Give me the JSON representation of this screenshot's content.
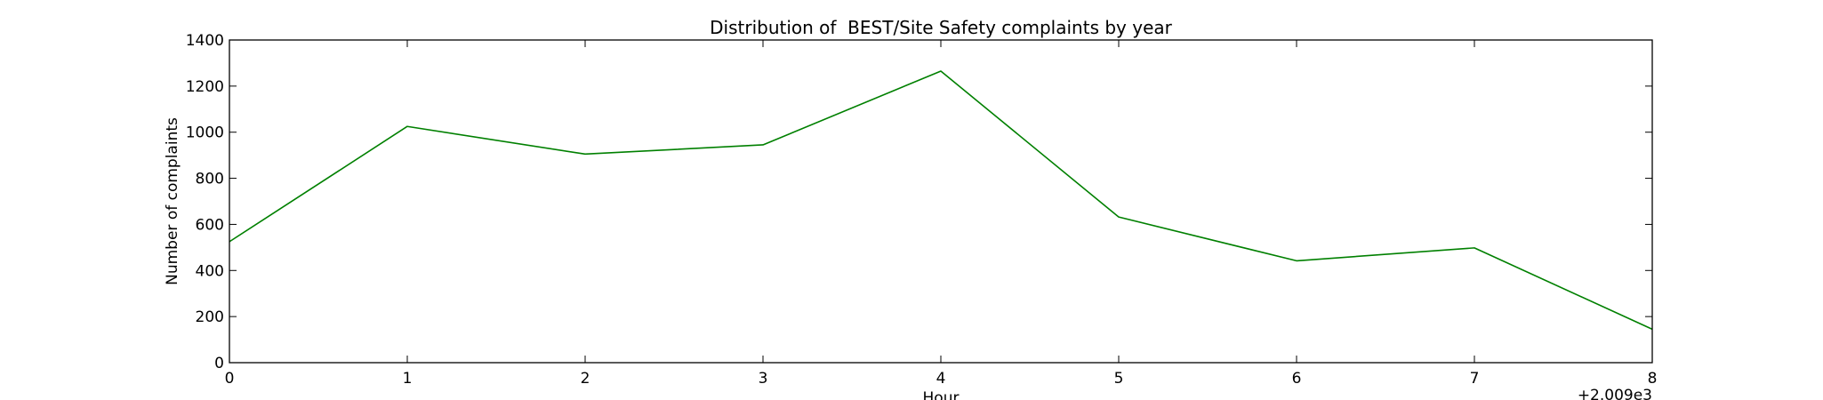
{
  "chart_data": {
    "type": "line",
    "title": "Distribution of  BEST/Site Safety complaints by year",
    "xlabel": "Hour",
    "ylabel": "Number of complaints",
    "x_offset_label": "+2.009e3",
    "x": [
      0,
      1,
      2,
      3,
      4,
      5,
      6,
      7,
      8
    ],
    "xlim": [
      0,
      8
    ],
    "ylim": [
      0,
      1400
    ],
    "xticks": [
      0,
      1,
      2,
      3,
      4,
      5,
      6,
      7,
      8
    ],
    "yticks": [
      0,
      200,
      400,
      600,
      800,
      1000,
      1200,
      1400
    ],
    "grid": false,
    "legend": "none",
    "series": [
      {
        "values": [
          525,
          1025,
          905,
          945,
          1265,
          632,
          442,
          498,
          145
        ],
        "color": "#008000"
      }
    ]
  }
}
